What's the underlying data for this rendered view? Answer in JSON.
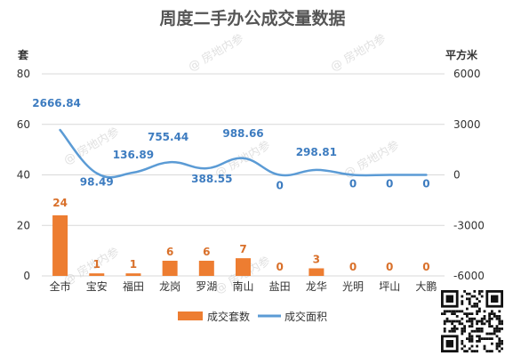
{
  "chart_data": {
    "type": "bar",
    "title": "周度二手办公成交量数据",
    "categories": [
      "全市",
      "宝安",
      "福田",
      "龙岗",
      "罗湖",
      "南山",
      "盐田",
      "龙华",
      "光明",
      "坪山",
      "大鹏"
    ],
    "left_axis": {
      "unit": "套",
      "range": [
        0,
        80
      ],
      "ticks": [
        "0",
        "20",
        "40",
        "60",
        "80"
      ]
    },
    "right_axis": {
      "unit": "平方米",
      "range": [
        -6000,
        6000
      ],
      "ticks": [
        "-6000",
        "-3000",
        "0",
        "3000",
        "6000"
      ]
    },
    "series": [
      {
        "name": "成交套数",
        "type": "bar",
        "axis": "left",
        "color": "#ed7d31",
        "values": [
          24,
          1,
          1,
          6,
          6,
          7,
          0,
          3,
          0,
          0,
          0
        ],
        "labels": [
          "24",
          "1",
          "1",
          "6",
          "6",
          "7",
          "0",
          "3",
          "0",
          "0",
          "0"
        ]
      },
      {
        "name": "成交面积",
        "type": "line",
        "axis": "right",
        "color": "#5b9bd5",
        "values": [
          2666.84,
          98.49,
          136.89,
          755.44,
          388.55,
          988.66,
          0,
          298.81,
          0,
          0,
          0
        ],
        "labels": [
          "2666.84",
          "98.49",
          "136.89",
          "755.44",
          "388.55",
          "988.66",
          "0",
          "298.81",
          "0",
          "0",
          "0"
        ]
      }
    ],
    "legend_position": "bottom",
    "grid": true
  },
  "watermark": "房地内参",
  "qr_icon": "qr-code-icon"
}
